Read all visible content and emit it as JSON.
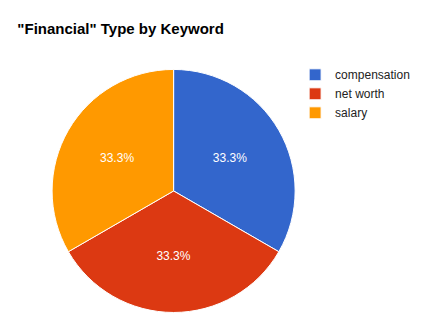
{
  "chart_data": {
    "type": "pie",
    "title": "\"Financial\" Type by Keyword",
    "categories": [
      "compensation",
      "net worth",
      "salary"
    ],
    "values": [
      33.3,
      33.3,
      33.3
    ],
    "value_labels": [
      "33.3%",
      "33.3%",
      "33.3%"
    ],
    "colors": [
      "#3366cc",
      "#dc3912",
      "#ff9900"
    ],
    "data_labels": true,
    "legend": "right"
  }
}
